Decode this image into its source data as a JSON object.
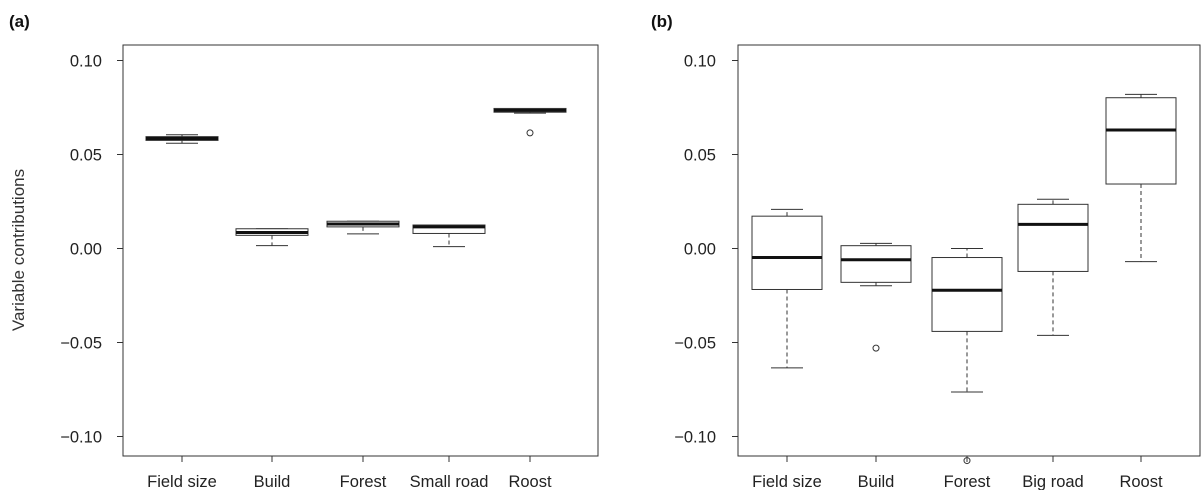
{
  "chart_data": [
    {
      "panel_label": "(a)",
      "type": "boxplot",
      "ylabel": "Variable contributions",
      "ylim": [
        -0.11,
        0.105
      ],
      "yticks": [
        0.1,
        0.05,
        0.0,
        -0.05,
        -0.1
      ],
      "ytick_labels": [
        "0.10",
        "0.05",
        "0.00",
        "−0.05",
        "−0.10"
      ],
      "categories": [
        "Field size",
        "Build",
        "Forest",
        "Small road",
        "Roost"
      ],
      "boxes": [
        {
          "whisker_low": 0.056,
          "q1": 0.0575,
          "median": 0.0585,
          "q3": 0.0595,
          "whisker_high": 0.0605,
          "outliers": []
        },
        {
          "whisker_low": 0.0015,
          "q1": 0.007,
          "median": 0.0085,
          "q3": 0.0105,
          "whisker_high": 0.0105,
          "outliers": []
        },
        {
          "whisker_low": 0.0078,
          "q1": 0.0115,
          "median": 0.013,
          "q3": 0.0145,
          "whisker_high": 0.0145,
          "outliers": []
        },
        {
          "whisker_low": 0.001,
          "q1": 0.008,
          "median": 0.0115,
          "q3": 0.0125,
          "whisker_high": 0.0125,
          "outliers": []
        },
        {
          "whisker_low": 0.072,
          "q1": 0.0725,
          "median": 0.0735,
          "q3": 0.0745,
          "whisker_high": 0.0745,
          "outliers": [
            0.0615
          ]
        }
      ]
    },
    {
      "panel_label": "(b)",
      "type": "boxplot",
      "ylabel": "",
      "ylim": [
        -0.11,
        0.105
      ],
      "yticks": [
        0.1,
        0.05,
        0.0,
        -0.05,
        -0.1
      ],
      "ytick_labels": [
        "0.10",
        "0.05",
        "0.00",
        "−0.05",
        "−0.10"
      ],
      "categories": [
        "Field size",
        "Build",
        "Forest",
        "Big road",
        "Roost"
      ],
      "boxes": [
        {
          "whisker_low": -0.0635,
          "q1": -0.0218,
          "median": -0.0048,
          "q3": 0.0172,
          "whisker_high": 0.0208,
          "outliers": []
        },
        {
          "whisker_low": -0.0198,
          "q1": -0.018,
          "median": -0.006,
          "q3": 0.0015,
          "whisker_high": 0.0027,
          "outliers": [
            -0.053
          ]
        },
        {
          "whisker_low": -0.0763,
          "q1": -0.0441,
          "median": -0.0222,
          "q3": -0.0048,
          "whisker_high": 0.0,
          "outliers": [
            -0.1128
          ]
        },
        {
          "whisker_low": -0.0462,
          "q1": -0.0122,
          "median": 0.0128,
          "q3": 0.0235,
          "whisker_high": 0.0262,
          "outliers": []
        },
        {
          "whisker_low": -0.007,
          "q1": 0.0343,
          "median": 0.063,
          "q3": 0.0802,
          "whisker_high": 0.082,
          "outliers": []
        }
      ]
    }
  ]
}
